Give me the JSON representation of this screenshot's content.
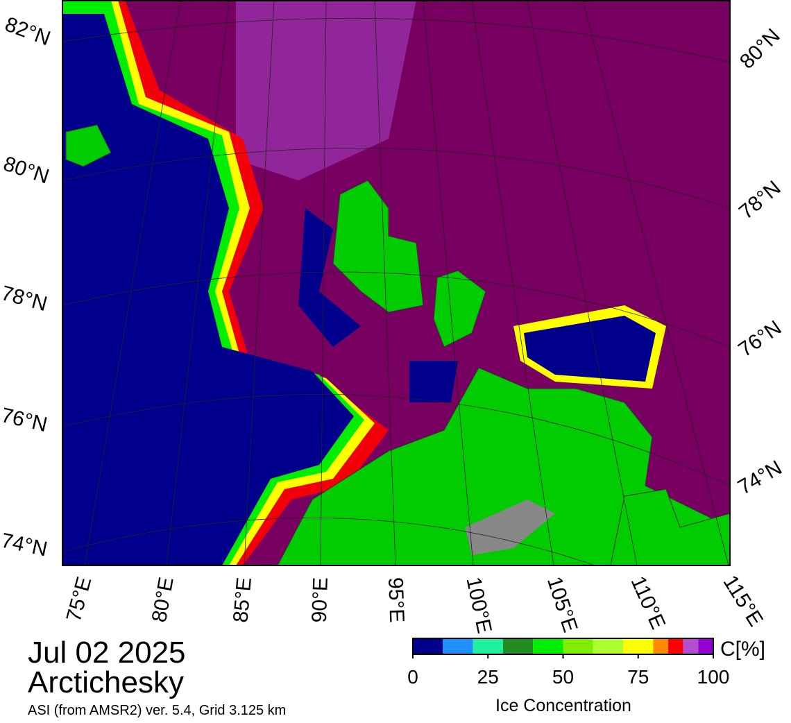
{
  "map": {
    "lat_labels_left": [
      "82°N",
      "80°N",
      "78°N",
      "76°N",
      "74°N"
    ],
    "lat_labels_right": [
      "80°N",
      "78°N",
      "76°N",
      "74°N"
    ],
    "lon_labels": [
      "75°E",
      "80°E",
      "85°E",
      "90°E",
      "95°E",
      "100°E",
      "105°E",
      "110°E",
      "115°E"
    ]
  },
  "date": "Jul 02 2025",
  "region": "Arctichesky",
  "source": "ASI (from AMSR2) ver. 5.4,  Grid 3.125 km",
  "colorbar": {
    "unit": "C[%]",
    "label": "Ice Concentration",
    "range": [
      0,
      100
    ],
    "ticks": [
      0,
      25,
      50,
      75,
      100
    ],
    "bounds": [
      0,
      10,
      20,
      30,
      40,
      50,
      60,
      70,
      80,
      85,
      90,
      95,
      100
    ],
    "colors": [
      "#00008c",
      "#1e90ff",
      "#20f0a0",
      "#228b22",
      "#00ee00",
      "#7fee00",
      "#adff2f",
      "#ffff00",
      "#ff8c00",
      "#ff0000",
      "#b050d0",
      "#9400d3"
    ]
  }
}
